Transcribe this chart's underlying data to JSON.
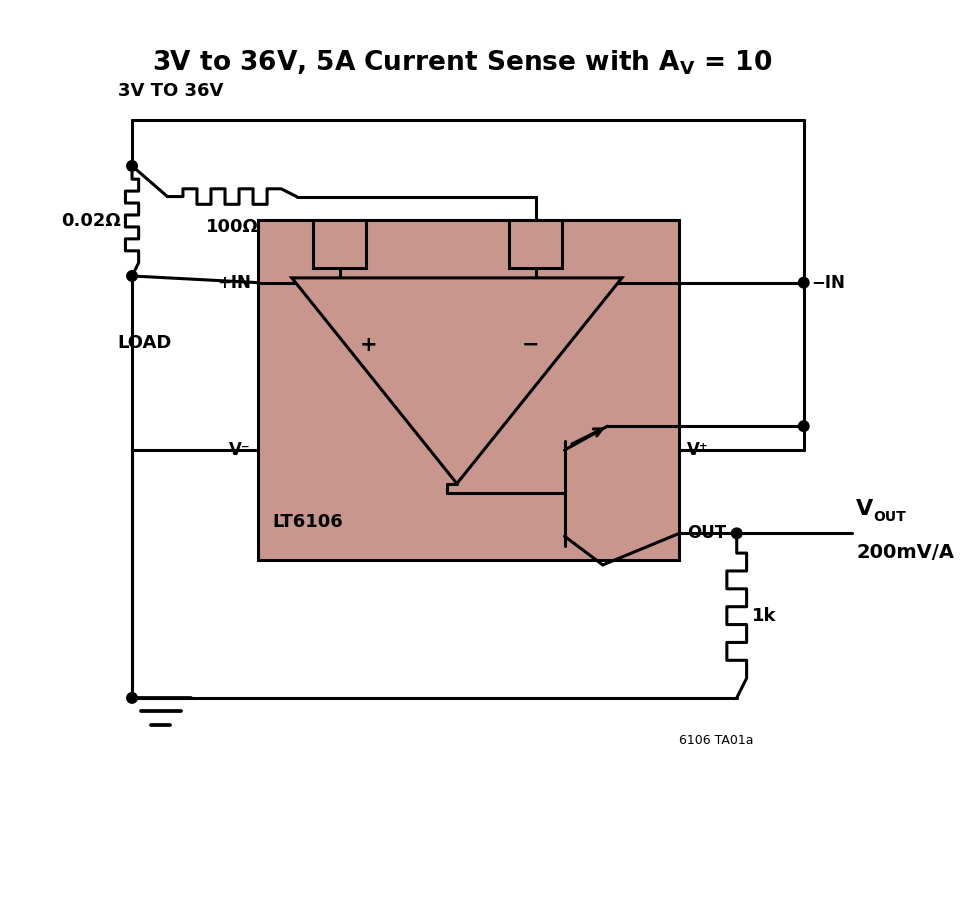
{
  "bg_color": "#ffffff",
  "line_color": "#000000",
  "ic_fill_color": "#c8968c",
  "lw": 2.2,
  "dot_r": 0.055,
  "fig_w": 9.65,
  "fig_h": 9.05,
  "label_3v_36v": "3V TO 36V",
  "label_load": "LOAD",
  "label_r_sense": "0.02Ω",
  "label_r1": "100Ω",
  "label_plus_in": "+IN",
  "label_minus_in": "−IN",
  "label_v_minus": "V⁻",
  "label_v_plus": "V⁺",
  "label_out": "OUT",
  "label_vout2": "200mV/A",
  "label_r2": "1k",
  "label_lt6106": "LT6106",
  "label_tag": "6106 TA01a",
  "title_part1": "3V to 36V, 5A Current Sense with A",
  "title_av": "V",
  "title_part2": " = 10"
}
